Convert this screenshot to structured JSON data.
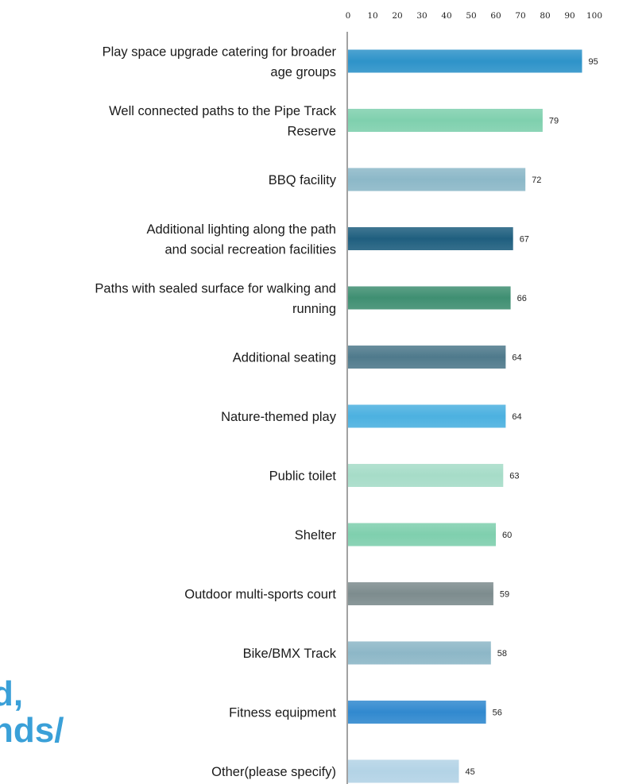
{
  "background": {
    "line1": "d,",
    "line2": "nds/",
    "color": "#3aa0d8"
  },
  "chart_data": {
    "type": "bar",
    "orientation": "horizontal",
    "categories": [
      [
        "Play space upgrade catering for broader",
        "age groups"
      ],
      [
        "Well connected paths to the Pipe Track",
        "Reserve"
      ],
      [
        "BBQ facility"
      ],
      [
        "Additional lighting along the path",
        "and social recreation facilities"
      ],
      [
        "Paths with sealed surface for walking and",
        "running"
      ],
      [
        "Additional seating"
      ],
      [
        "Nature-themed play"
      ],
      [
        "Public toilet"
      ],
      [
        "Shelter"
      ],
      [
        "Outdoor multi-sports court"
      ],
      [
        "Bike/BMX Track"
      ],
      [
        "Fitness equipment"
      ],
      [
        "Other(please specify)"
      ]
    ],
    "values": [
      95,
      79,
      72,
      67,
      66,
      64,
      64,
      63,
      60,
      59,
      58,
      56,
      45
    ],
    "colors": [
      "#2e93c9",
      "#7fd0ae",
      "#8cb8c8",
      "#1f5f7f",
      "#3f8f72",
      "#4f7a8c",
      "#4cb1e0",
      "#a6dcc8",
      "#7fcfae",
      "#7d8c8e",
      "#8db7c7",
      "#3189cf",
      "#b3d3e6"
    ],
    "xlim": [
      0,
      100
    ],
    "xticks": [
      0,
      10,
      20,
      30,
      40,
      50,
      60,
      70,
      80,
      90,
      100
    ],
    "xaxis_position": "top",
    "grid": false,
    "legend": "none",
    "data_labels": true
  }
}
